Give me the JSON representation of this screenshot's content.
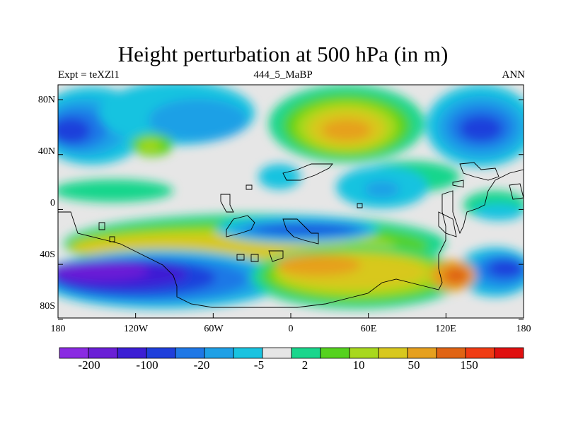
{
  "map": {
    "title": "Height perturbation at 500 hPa (in m)",
    "left_string": "Expt = teXZl1",
    "center_string": "444_5_MaBP",
    "right_string": "ANN",
    "lat_labels": [
      "80N",
      "40N",
      "0",
      "40S",
      "80S"
    ],
    "lon_labels": [
      "180",
      "120W",
      "60W",
      "0",
      "60E",
      "120E",
      "180"
    ],
    "colors": {
      "land_outline": "#000000",
      "background": "#ffffff"
    }
  },
  "colorbar": {
    "colors": [
      "#8a2be2",
      "#6a1fd6",
      "#3c1ed4",
      "#1f3fdb",
      "#1f78e6",
      "#1fa0e6",
      "#19c3e0",
      "#e6e6e6",
      "#19d68c",
      "#55d21e",
      "#a8d81e",
      "#d8c81e",
      "#e6a01e",
      "#e06414",
      "#f03c14",
      "#e01010"
    ],
    "labels": [
      "-200",
      "-100",
      "-20",
      "-5",
      "2",
      "10",
      "50",
      "150"
    ]
  }
}
